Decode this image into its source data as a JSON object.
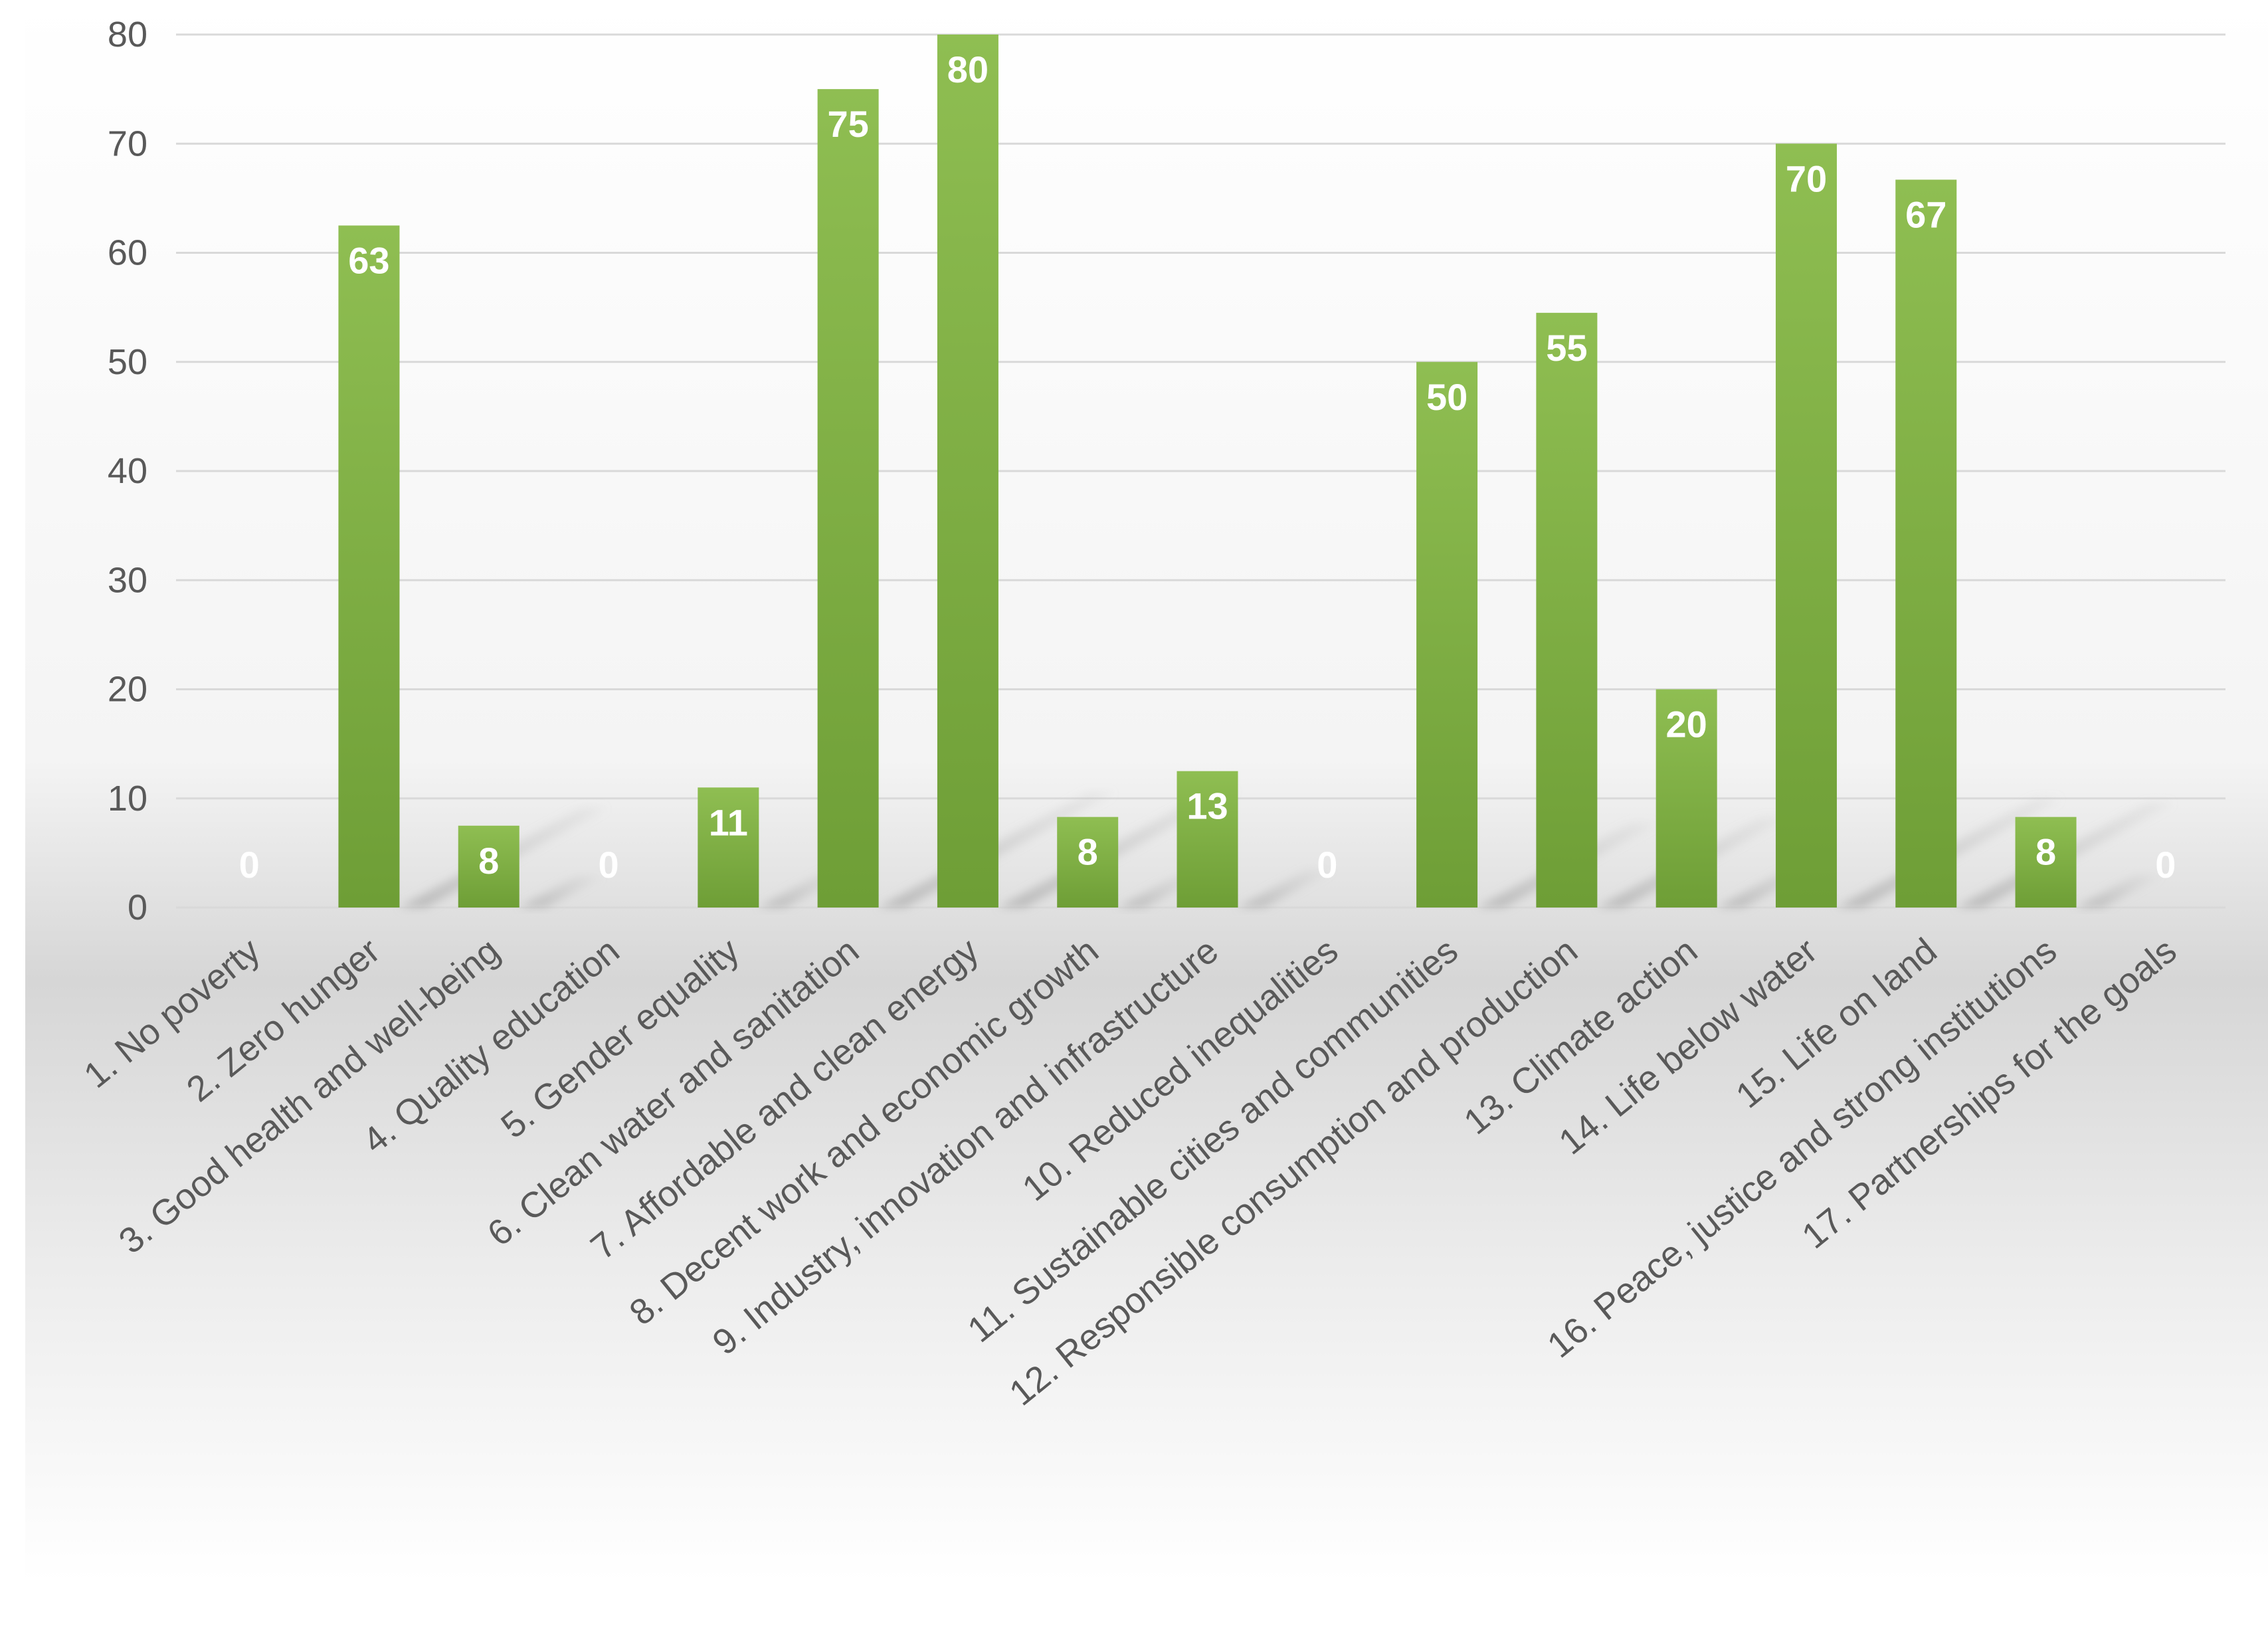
{
  "chart_data": {
    "type": "bar",
    "title": "",
    "xlabel": "",
    "ylabel": "",
    "ylim": [
      0,
      80
    ],
    "yticks": [
      0,
      10,
      20,
      30,
      40,
      50,
      60,
      70,
      80
    ],
    "grid": true,
    "legend": "none",
    "categories": [
      "1. No poverty",
      "2. Zero hunger",
      "3. Good health and well-being",
      "4. Quality education",
      "5. Gender equality",
      "6. Clean water and sanitation",
      "7. Affordable and clean energy",
      "8. Decent work and economic growth",
      "9. Industry, innovation and infrastructure",
      "10. Reduced inequalities",
      "11. Sustainable cities and communities",
      "12. Responsible consumption and production",
      "13. Climate action",
      "14. Life below water",
      "15. Life on land",
      "16. Peace, justice and strong institutions",
      "17. Partnerships for the goals"
    ],
    "values": [
      0,
      62.5,
      7.5,
      0,
      11,
      75,
      80,
      8.3,
      12.5,
      0,
      50,
      54.5,
      20,
      70,
      66.7,
      8.3,
      0
    ],
    "data_labels": [
      "0",
      "63",
      "8",
      "0",
      "11",
      "75",
      "80",
      "8",
      "13",
      "0",
      "50",
      "55",
      "20",
      "70",
      "67",
      "8",
      "0"
    ],
    "colors": {
      "bar_top": "#8fbe52",
      "bar_bottom": "#6e9e36",
      "data_label": "#ffffff",
      "grid": "#d9d9d9",
      "axis_text": "#595959"
    }
  }
}
